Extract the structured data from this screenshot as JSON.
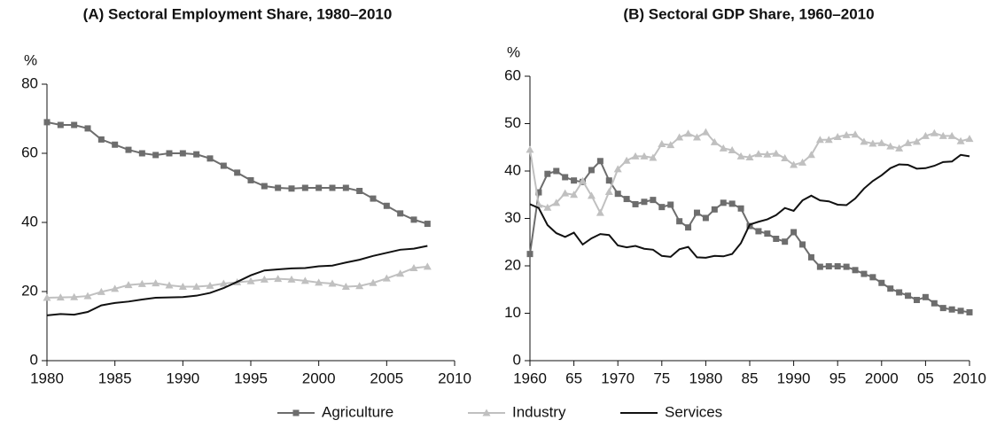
{
  "chart_data": [
    {
      "type": "line",
      "title": "(A) Sectoral Employment  Share, 1980–2010",
      "y_label": "%",
      "x": [
        1980,
        1981,
        1982,
        1983,
        1984,
        1985,
        1986,
        1987,
        1988,
        1989,
        1990,
        1991,
        1992,
        1993,
        1994,
        1995,
        1996,
        1997,
        1998,
        1999,
        2000,
        2001,
        2002,
        2003,
        2004,
        2005,
        2006,
        2007,
        2008
      ],
      "xlim": [
        1980,
        2010
      ],
      "xticks": [
        1980,
        1985,
        1990,
        1995,
        2000,
        2005,
        2010
      ],
      "ylim": [
        0,
        80
      ],
      "yticks": [
        0,
        20,
        40,
        60,
        80
      ],
      "grid": false,
      "legend": "bottom",
      "series": [
        {
          "name": "Agriculture",
          "color": "#6d6d6d",
          "marker": "square",
          "values": [
            69,
            68.2,
            68.2,
            67.2,
            64,
            62.5,
            61,
            60,
            59.5,
            60,
            60,
            59.7,
            58.5,
            56.4,
            54.4,
            52.2,
            50.5,
            50,
            49.8,
            50,
            50,
            50,
            50,
            49.1,
            46.9,
            44.8,
            42.6,
            40.8,
            39.6
          ]
        },
        {
          "name": "Industry",
          "color": "#c0c0c0",
          "marker": "triangle",
          "values": [
            18.2,
            18.3,
            18.4,
            18.7,
            19.9,
            20.8,
            21.9,
            22.2,
            22.4,
            21.8,
            21.4,
            21.4,
            21.7,
            22.3,
            22.7,
            23,
            23.5,
            23.7,
            23.5,
            23.1,
            22.6,
            22.3,
            21.4,
            21.6,
            22.5,
            23.8,
            25.2,
            26.8,
            27.2
          ]
        },
        {
          "name": "Services",
          "color": "#111111",
          "marker": "none",
          "values": [
            13.1,
            13.5,
            13.3,
            14.1,
            16,
            16.7,
            17.1,
            17.7,
            18.2,
            18.3,
            18.4,
            18.8,
            19.6,
            21,
            22.8,
            24.7,
            26.1,
            26.4,
            26.7,
            26.8,
            27.3,
            27.5,
            28.4,
            29.2,
            30.3,
            31.2,
            32.1,
            32.4,
            33.2
          ]
        }
      ]
    },
    {
      "type": "line",
      "title": "(B) Sectoral GDP Share, 1960–2010",
      "y_label": "%",
      "x": [
        1960,
        1961,
        1962,
        1963,
        1964,
        1965,
        1966,
        1967,
        1968,
        1969,
        1970,
        1971,
        1972,
        1973,
        1974,
        1975,
        1976,
        1977,
        1978,
        1979,
        1980,
        1981,
        1982,
        1983,
        1984,
        1985,
        1986,
        1987,
        1988,
        1989,
        1990,
        1991,
        1992,
        1993,
        1994,
        1995,
        1996,
        1997,
        1998,
        1999,
        2000,
        2001,
        2002,
        2003,
        2004,
        2005,
        2006,
        2007,
        2008,
        2009,
        2010
      ],
      "xlim": [
        1960,
        2010
      ],
      "xticks": [
        1960,
        {
          "value": 1965,
          "label": "65"
        },
        1970,
        {
          "value": 1975,
          "label": "75"
        },
        1980,
        {
          "value": 1985,
          "label": "85"
        },
        1990,
        {
          "value": 1995,
          "label": "95"
        },
        2000,
        {
          "value": 2005,
          "label": "05"
        },
        2010
      ],
      "ylim": [
        0,
        60
      ],
      "yticks": [
        0,
        10,
        20,
        30,
        40,
        50,
        60
      ],
      "grid": false,
      "series": [
        {
          "color": "#6d6d6d",
          "marker": "square",
          "values": [
            22.5,
            35.5,
            39.4,
            40,
            38.7,
            38,
            37.7,
            40.2,
            42.1,
            38,
            35.2,
            34.1,
            33,
            33.5,
            33.9,
            32.4,
            32.9,
            29.4,
            28.1,
            31.2,
            30.1,
            31.9,
            33.3,
            33.1,
            32.1,
            28.4,
            27.3,
            26.8,
            25.7,
            25.1,
            27.1,
            24.5,
            21.8,
            19.8,
            19.9,
            19.9,
            19.8,
            19.1,
            18.3,
            17.6,
            16.4,
            15.2,
            14.4,
            13.7,
            12.8,
            13.4,
            12.1,
            11.1,
            10.8,
            10.5,
            10.2
          ]
        },
        {
          "color": "#c0c0c0",
          "marker": "triangle",
          "values": [
            44.5,
            32.9,
            32.3,
            33.3,
            35.3,
            35,
            37.9,
            34.8,
            31.2,
            35.6,
            40.4,
            42.2,
            43.1,
            43.1,
            42.8,
            45.7,
            45.5,
            47.1,
            47.9,
            47.1,
            48.2,
            46.1,
            44.8,
            44.4,
            43.1,
            42.9,
            43.6,
            43.5,
            43.7,
            42.7,
            41.3,
            41.8,
            43.4,
            46.6,
            46.6,
            47.2,
            47.6,
            47.7,
            46.2,
            45.8,
            45.9,
            45.2,
            44.8,
            45.9,
            46.2,
            47.4,
            48,
            47.4,
            47.4,
            46.3,
            46.8
          ]
        },
        {
          "color": "#111111",
          "marker": "none",
          "values": [
            33,
            32.2,
            28.6,
            26.9,
            26.1,
            27,
            24.5,
            25.8,
            26.7,
            26.5,
            24.3,
            23.9,
            24.2,
            23.6,
            23.4,
            22.1,
            21.9,
            23.5,
            24,
            21.8,
            21.7,
            22.1,
            22,
            22.5,
            24.8,
            28.7,
            29.3,
            29.8,
            30.7,
            32.2,
            31.6,
            33.8,
            34.8,
            33.8,
            33.6,
            32.9,
            32.8,
            34.2,
            36.3,
            37.9,
            39.1,
            40.6,
            41.4,
            41.3,
            40.5,
            40.6,
            41.1,
            41.9,
            42,
            43.4,
            43.1
          ]
        }
      ]
    }
  ]
}
